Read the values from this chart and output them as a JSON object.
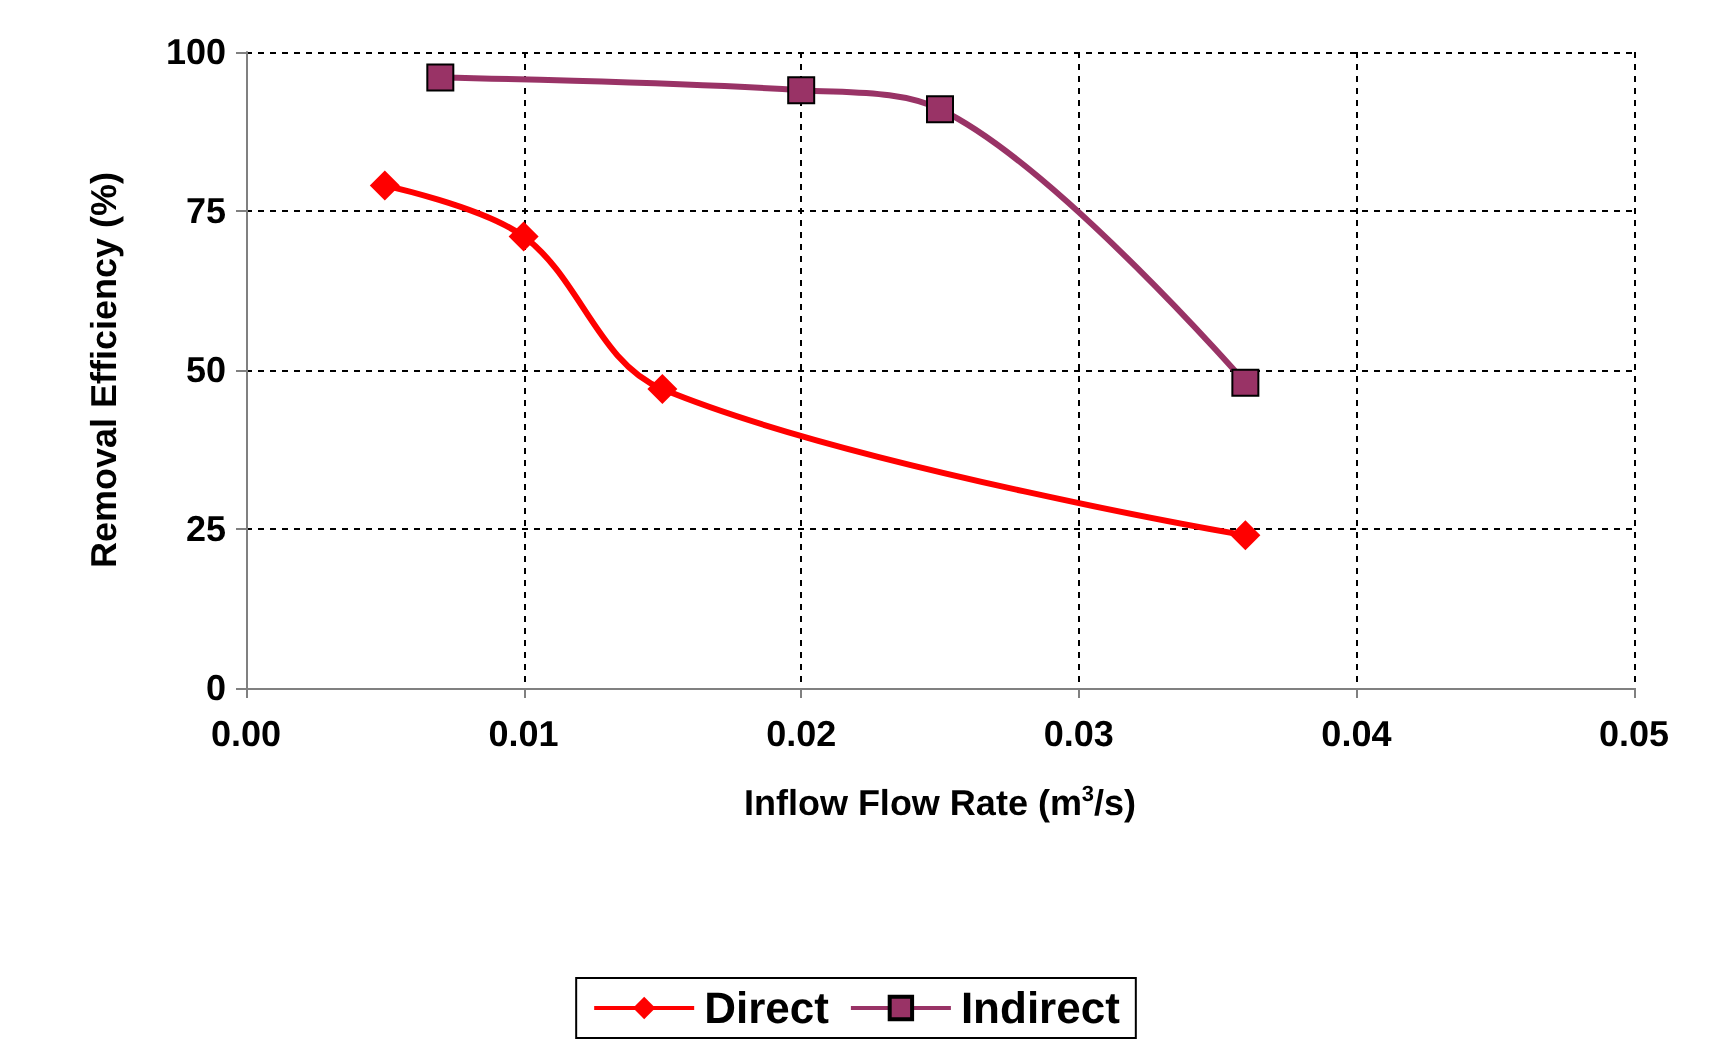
{
  "chart_data": {
    "type": "line",
    "xlabel": "Inflow Flow Rate (m$^{3}$/s)",
    "ylabel": "Removal Efficiency (%)",
    "xlim": [
      0,
      0.05
    ],
    "xticks": [
      {
        "value": 0,
        "label": "0.00"
      },
      {
        "value": 0.01,
        "label": "0.01"
      },
      {
        "value": 0.02,
        "label": "0.02"
      },
      {
        "value": 0.03,
        "label": "0.03"
      },
      {
        "value": 0.04,
        "label": "0.04"
      },
      {
        "value": 0.05,
        "label": "0.05"
      }
    ],
    "ylim": [
      0,
      100
    ],
    "yticks": [
      0,
      25,
      50,
      75,
      100
    ],
    "grid": true,
    "legend": "bottom",
    "series": [
      {
        "name": "Direct",
        "color": "#ff0000",
        "marker": "diamond",
        "x": [
          0.005,
          0.01,
          0.015,
          0.036
        ],
        "values": [
          79,
          71,
          47,
          24
        ]
      },
      {
        "name": "Indirect",
        "color": "#993366",
        "marker": "square",
        "x": [
          0.007,
          0.02,
          0.025,
          0.036
        ],
        "values": [
          96,
          94,
          91,
          48
        ]
      }
    ]
  }
}
